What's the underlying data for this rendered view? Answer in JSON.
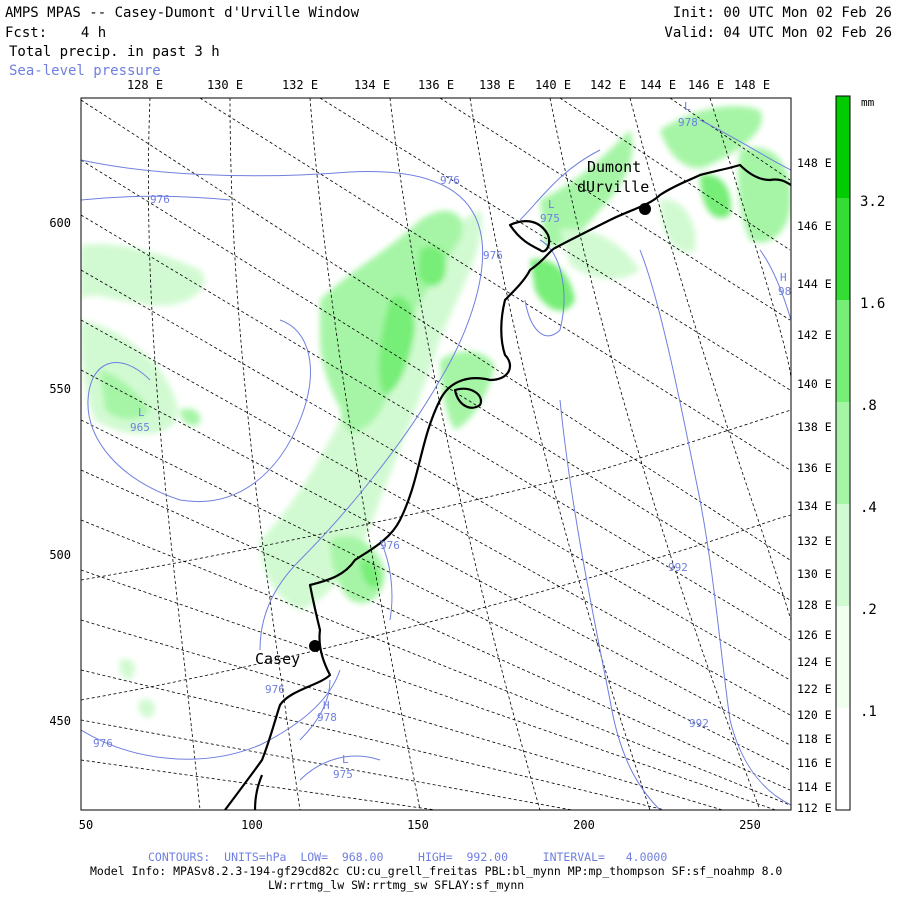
{
  "header": {
    "title": "AMPS MPAS -- Casey-Dumont d'Urville Window",
    "fcst": "Fcst:    4 h",
    "field": "Total precip. in past 3 h",
    "overlay": "Sea-level pressure",
    "init": "Init: 00 UTC Mon 02 Feb 26",
    "valid": "Valid: 04 UTC Mon 02 Feb 26"
  },
  "axes": {
    "top_lon_labels": [
      "128 E",
      "130 E",
      "132 E",
      "134 E",
      "136 E",
      "138 E",
      "140 E",
      "142 E",
      "144 E",
      "146 E",
      "148 E"
    ],
    "right_lon_labels": [
      "148 E",
      "146 E",
      "144 E",
      "142 E",
      "140 E",
      "138 E",
      "136 E",
      "134 E",
      "132 E",
      "130 E",
      "128 E",
      "126 E",
      "124 E",
      "122 E",
      "120 E",
      "118 E",
      "116 E",
      "114 E",
      "112 E"
    ],
    "x_labels": [
      "50",
      "100",
      "150",
      "200",
      "250"
    ],
    "y_labels": [
      "600",
      "550",
      "500",
      "450"
    ]
  },
  "stations": [
    {
      "name_line1": "Dumont",
      "name_line2": "dUrville"
    },
    {
      "name_line1": "Casey",
      "name_line2": ""
    }
  ],
  "pressure_labels": [
    "978",
    "976",
    "976",
    "975",
    "976",
    "965",
    "976",
    "976",
    "978",
    "975",
    "992",
    "992",
    "98"
  ],
  "pressure_marks": [
    "L",
    "L",
    "L",
    "H",
    "L",
    "H"
  ],
  "colorbar": {
    "unit": "mm",
    "levels": [
      "3.2",
      "1.6",
      ".8",
      ".4",
      ".2",
      ".1"
    ],
    "colors": {
      "c1": "#00cc00",
      "c2": "#33dd33",
      "c3": "#77ee77",
      "c4": "#a6f5a6",
      "c5": "#d2fad2",
      "c6": "#f0fff0"
    }
  },
  "footer": {
    "contours": "CONTOURS:  UNITS=hPa  LOW=  968.00     HIGH=  992.00     INTERVAL=   4.0000",
    "model_info": "Model Info: MPASv8.2.3-194-gf29cd82c CU:cu_grell_freitas PBL:bl_mynn MP:mp_thompson SF:sf_noahmp 8.0",
    "model_info2": "LW:rrtmg_lw SW:rrtmg_sw SFLAY:sf_mynn"
  }
}
